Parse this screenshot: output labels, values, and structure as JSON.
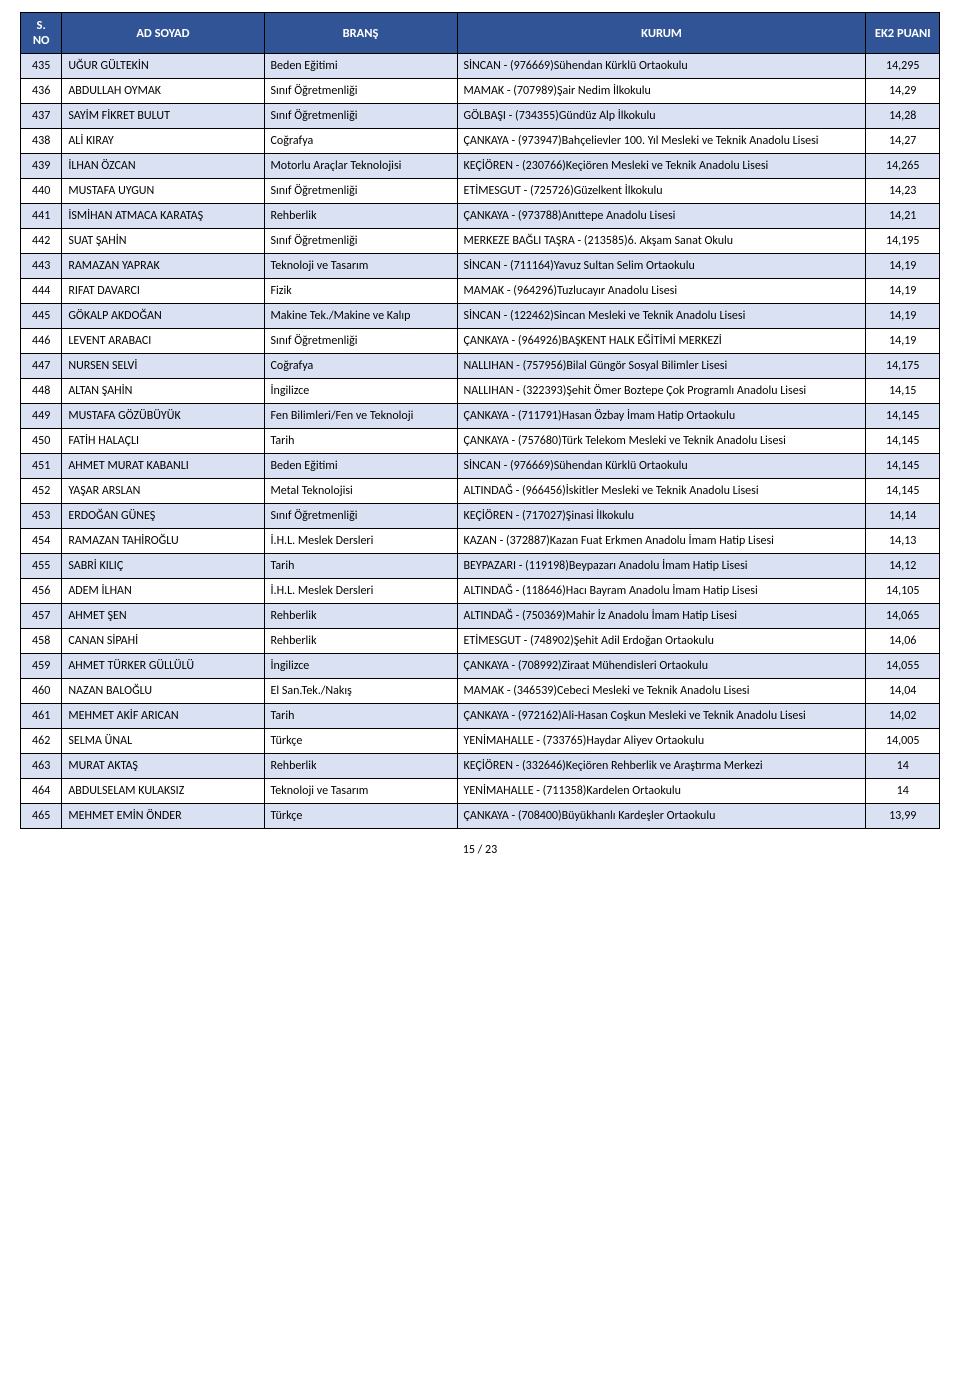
{
  "header": {
    "no": "S. NO",
    "name": "AD SOYAD",
    "branch": "BRANŞ",
    "inst": "KURUM",
    "score": "EK2 PUANI"
  },
  "page_indicator": "15 / 23",
  "colors": {
    "header_bg": "#305496",
    "header_text": "#ffffff",
    "row_odd_bg": "#d9e1f2",
    "row_even_bg": "#ffffff",
    "border": "#000000",
    "text": "#000000"
  },
  "rows": [
    {
      "no": "435",
      "name": "UĞUR GÜLTEKİN",
      "branch": "Beden Eğitimi",
      "inst": "SİNCAN - (976669)Sühendan Kürklü Ortaokulu",
      "score": "14,295"
    },
    {
      "no": "436",
      "name": "ABDULLAH OYMAK",
      "branch": "Sınıf Öğretmenliği",
      "inst": "MAMAK - (707989)Şair Nedim İlkokulu",
      "score": "14,29"
    },
    {
      "no": "437",
      "name": "SAYİM FİKRET BULUT",
      "branch": "Sınıf Öğretmenliği",
      "inst": "GÖLBAŞI - (734355)Gündüz Alp İlkokulu",
      "score": "14,28"
    },
    {
      "no": "438",
      "name": "ALİ KIRAY",
      "branch": "Coğrafya",
      "inst": "ÇANKAYA - (973947)Bahçelievler 100. Yıl Mesleki ve Teknik Anadolu Lisesi",
      "score": "14,27"
    },
    {
      "no": "439",
      "name": "İLHAN ÖZCAN",
      "branch": "Motorlu Araçlar Teknolojisi",
      "inst": "KEÇİÖREN - (230766)Keçiören Mesleki ve Teknik Anadolu Lisesi",
      "score": "14,265"
    },
    {
      "no": "440",
      "name": "MUSTAFA UYGUN",
      "branch": "Sınıf Öğretmenliği",
      "inst": "ETİMESGUT - (725726)Güzelkent İlkokulu",
      "score": "14,23"
    },
    {
      "no": "441",
      "name": "İSMİHAN ATMACA KARATAŞ",
      "branch": "Rehberlik",
      "inst": "ÇANKAYA - (973788)Anıttepe Anadolu Lisesi",
      "score": "14,21"
    },
    {
      "no": "442",
      "name": "SUAT ŞAHİN",
      "branch": "Sınıf Öğretmenliği",
      "inst": "MERKEZE BAĞLI TAŞRA - (213585)6. Akşam Sanat Okulu",
      "score": "14,195"
    },
    {
      "no": "443",
      "name": "RAMAZAN YAPRAK",
      "branch": "Teknoloji ve Tasarım",
      "inst": "SİNCAN - (711164)Yavuz Sultan Selim Ortaokulu",
      "score": "14,19"
    },
    {
      "no": "444",
      "name": "RIFAT DAVARCI",
      "branch": "Fizik",
      "inst": "MAMAK - (964296)Tuzlucayır Anadolu Lisesi",
      "score": "14,19"
    },
    {
      "no": "445",
      "name": "GÖKALP AKDOĞAN",
      "branch": "Makine Tek./Makine ve Kalıp",
      "inst": "SİNCAN - (122462)Sincan Mesleki ve Teknik Anadolu Lisesi",
      "score": "14,19"
    },
    {
      "no": "446",
      "name": "LEVENT ARABACI",
      "branch": "Sınıf Öğretmenliği",
      "inst": "ÇANKAYA - (964926)BAŞKENT HALK EĞİTİMİ MERKEZİ",
      "score": "14,19"
    },
    {
      "no": "447",
      "name": "NURSEN SELVİ",
      "branch": "Coğrafya",
      "inst": "NALLIHAN - (757956)Bilal Güngör Sosyal Bilimler Lisesi",
      "score": "14,175"
    },
    {
      "no": "448",
      "name": "ALTAN ŞAHİN",
      "branch": "İngilizce",
      "inst": "NALLIHAN - (322393)Şehit Ömer Boztepe Çok Programlı Anadolu Lisesi",
      "score": "14,15"
    },
    {
      "no": "449",
      "name": "MUSTAFA GÖZÜBÜYÜK",
      "branch": "Fen Bilimleri/Fen ve Teknoloji",
      "inst": "ÇANKAYA - (711791)Hasan Özbay İmam Hatip Ortaokulu",
      "score": "14,145"
    },
    {
      "no": "450",
      "name": "FATİH HALAÇLI",
      "branch": "Tarih",
      "inst": "ÇANKAYA - (757680)Türk Telekom Mesleki ve Teknik Anadolu Lisesi",
      "score": "14,145"
    },
    {
      "no": "451",
      "name": "AHMET MURAT KABANLI",
      "branch": "Beden Eğitimi",
      "inst": "SİNCAN - (976669)Sühendan Kürklü Ortaokulu",
      "score": "14,145"
    },
    {
      "no": "452",
      "name": "YAŞAR ARSLAN",
      "branch": "Metal Teknolojisi",
      "inst": "ALTINDAĞ - (966456)İskitler Mesleki ve Teknik Anadolu Lisesi",
      "score": "14,145"
    },
    {
      "no": "453",
      "name": "ERDOĞAN GÜNEŞ",
      "branch": "Sınıf Öğretmenliği",
      "inst": "KEÇİÖREN - (717027)Şinasi İlkokulu",
      "score": "14,14"
    },
    {
      "no": "454",
      "name": "RAMAZAN TAHİROĞLU",
      "branch": "İ.H.L. Meslek Dersleri",
      "inst": "KAZAN - (372887)Kazan Fuat Erkmen Anadolu İmam Hatip Lisesi",
      "score": "14,13"
    },
    {
      "no": "455",
      "name": "SABRİ KILIÇ",
      "branch": "Tarih",
      "inst": "BEYPAZARI - (119198)Beypazarı Anadolu İmam Hatip Lisesi",
      "score": "14,12"
    },
    {
      "no": "456",
      "name": "ADEM İLHAN",
      "branch": "İ.H.L. Meslek Dersleri",
      "inst": "ALTINDAĞ - (118646)Hacı Bayram Anadolu İmam Hatip Lisesi",
      "score": "14,105"
    },
    {
      "no": "457",
      "name": "AHMET ŞEN",
      "branch": "Rehberlik",
      "inst": "ALTINDAĞ - (750369)Mahir İz Anadolu İmam Hatip Lisesi",
      "score": "14,065"
    },
    {
      "no": "458",
      "name": "CANAN SİPAHİ",
      "branch": "Rehberlik",
      "inst": "ETİMESGUT - (748902)Şehit Adil Erdoğan Ortaokulu",
      "score": "14,06"
    },
    {
      "no": "459",
      "name": "AHMET TÜRKER GÜLLÜLÜ",
      "branch": "İngilizce",
      "inst": "ÇANKAYA - (708992)Ziraat Mühendisleri Ortaokulu",
      "score": "14,055"
    },
    {
      "no": "460",
      "name": "NAZAN BALOĞLU",
      "branch": "El San.Tek./Nakış",
      "inst": "MAMAK - (346539)Cebeci Mesleki ve Teknik Anadolu Lisesi",
      "score": "14,04"
    },
    {
      "no": "461",
      "name": "MEHMET AKİF ARICAN",
      "branch": "Tarih",
      "inst": "ÇANKAYA - (972162)Ali-Hasan Coşkun Mesleki ve Teknik Anadolu Lisesi",
      "score": "14,02"
    },
    {
      "no": "462",
      "name": "SELMA ÜNAL",
      "branch": "Türkçe",
      "inst": "YENİMAHALLE - (733765)Haydar Aliyev Ortaokulu",
      "score": "14,005"
    },
    {
      "no": "463",
      "name": "MURAT AKTAŞ",
      "branch": "Rehberlik",
      "inst": "KEÇİÖREN - (332646)Keçiören Rehberlik ve Araştırma Merkezi",
      "score": "14"
    },
    {
      "no": "464",
      "name": "ABDULSELAM KULAKSIZ",
      "branch": "Teknoloji ve Tasarım",
      "inst": "YENİMAHALLE - (711358)Kardelen Ortaokulu",
      "score": "14"
    },
    {
      "no": "465",
      "name": "MEHMET EMİN ÖNDER",
      "branch": "Türkçe",
      "inst": "ÇANKAYA - (708400)Büyükhanlı Kardeşler Ortaokulu",
      "score": "13,99"
    }
  ]
}
